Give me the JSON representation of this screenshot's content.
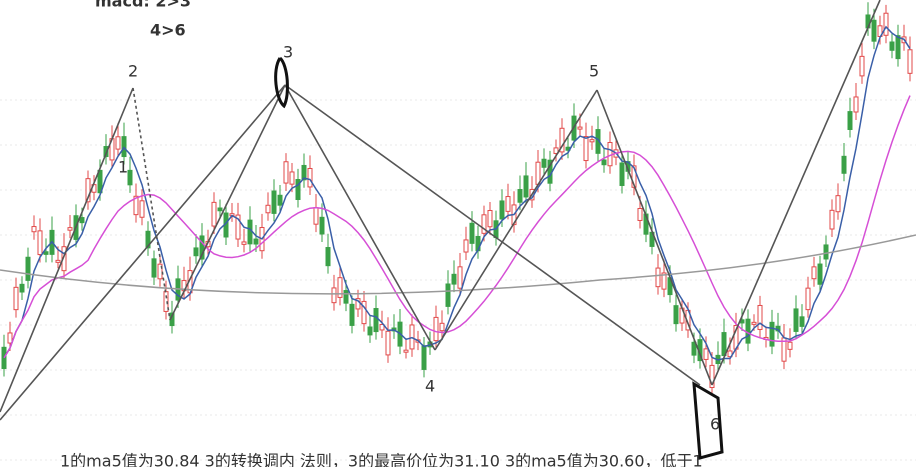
{
  "header": {
    "title": "macd: 2>3",
    "subtitle": "4>6"
  },
  "points": [
    {
      "label": "1"
    },
    {
      "label": "2"
    },
    {
      "label": "3"
    },
    {
      "label": "4"
    },
    {
      "label": "5"
    },
    {
      "label": "6"
    }
  ],
  "caption": "1的ma5值为30.84 3的转换调内 法则，3的最高价位为31.10 3的ma5值为30.60，低于1"
}
